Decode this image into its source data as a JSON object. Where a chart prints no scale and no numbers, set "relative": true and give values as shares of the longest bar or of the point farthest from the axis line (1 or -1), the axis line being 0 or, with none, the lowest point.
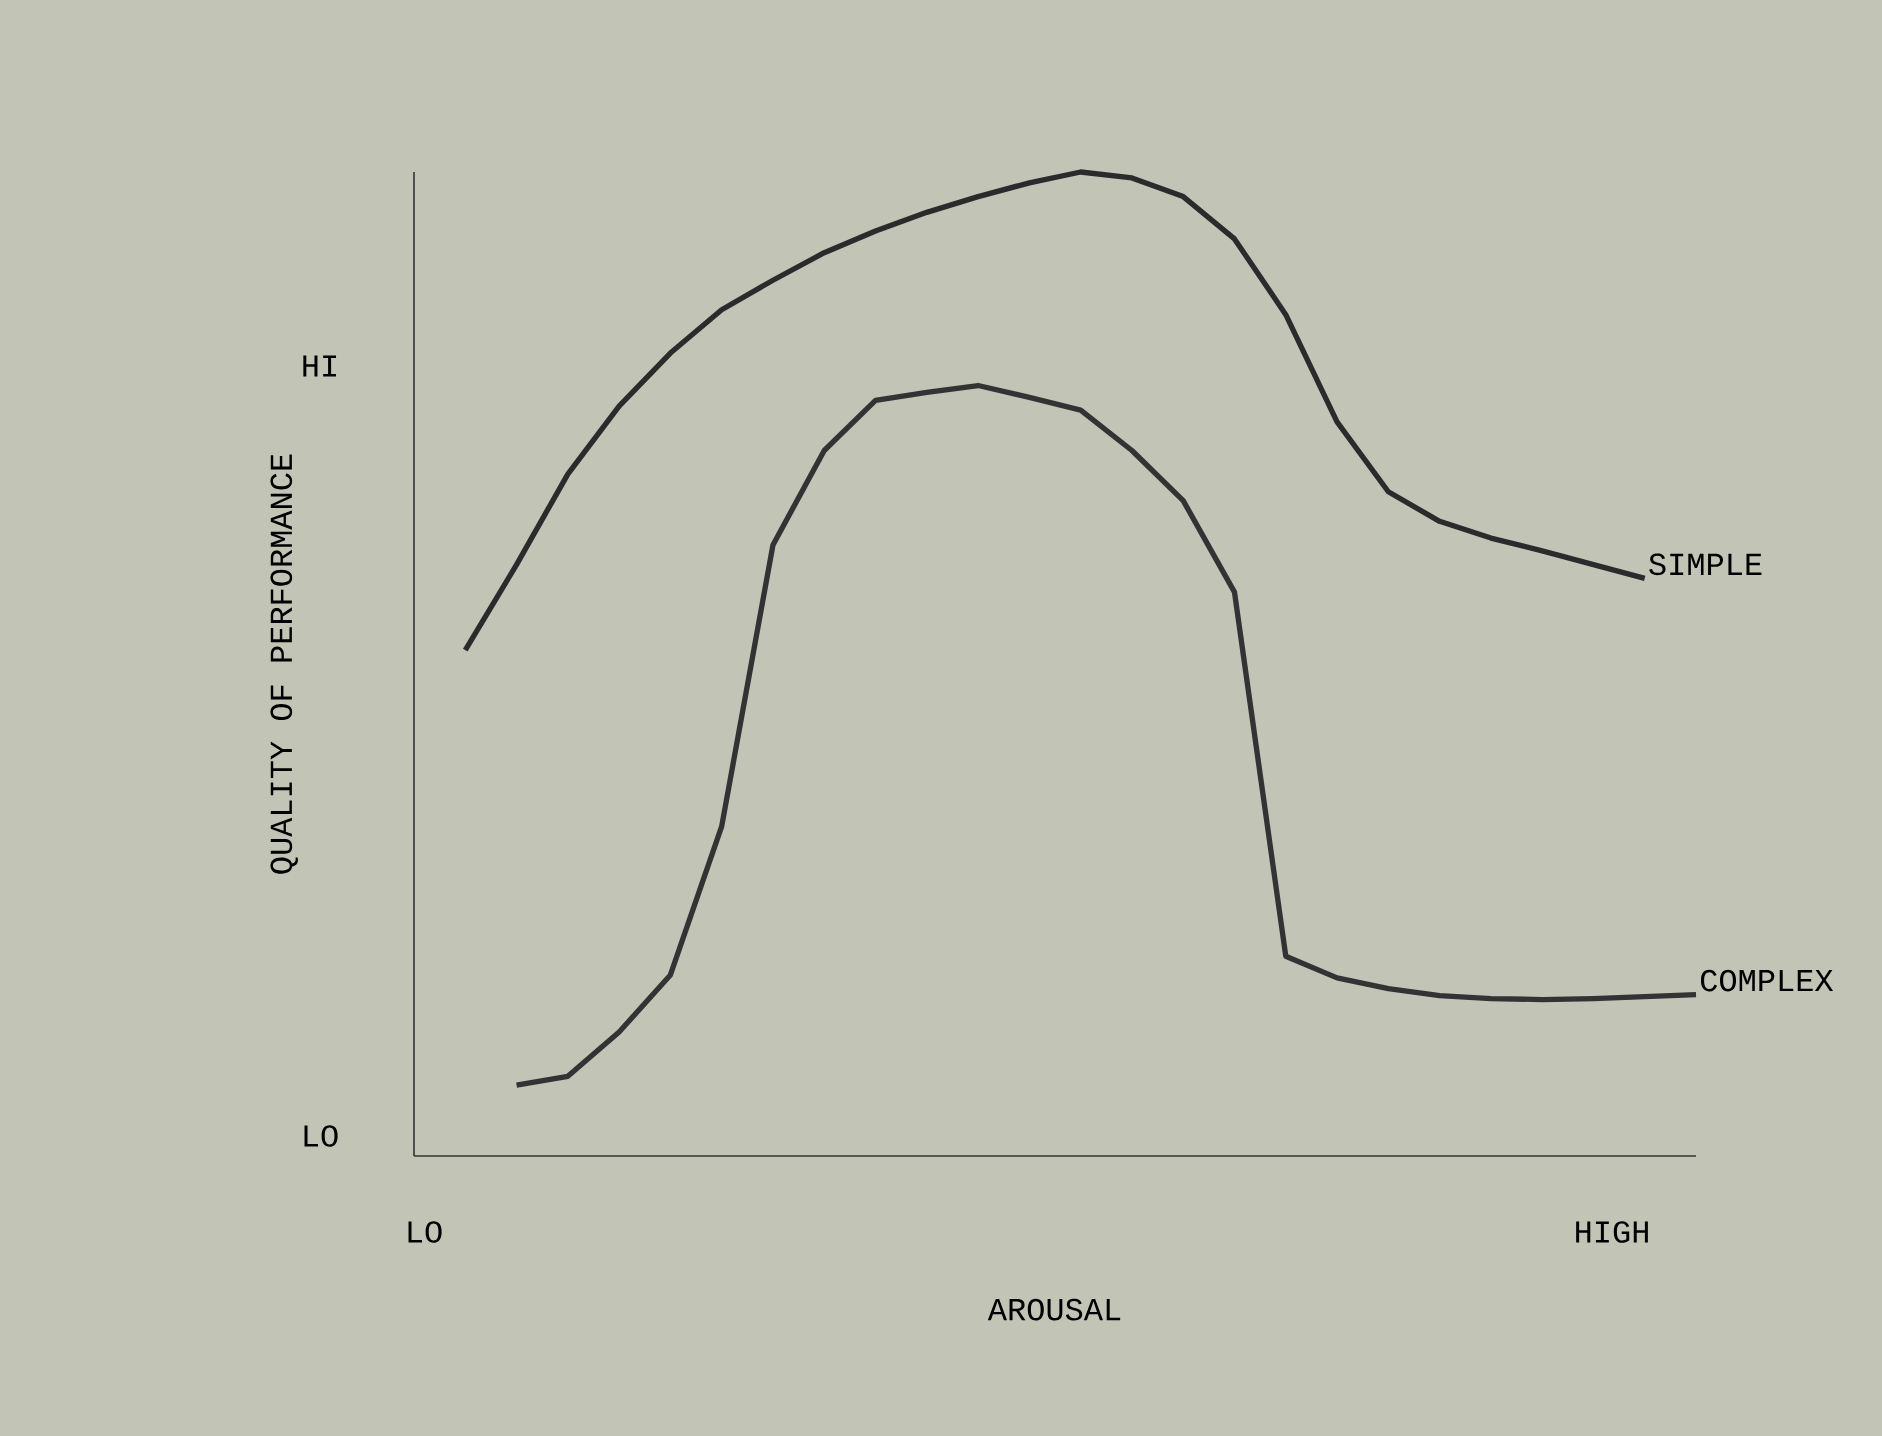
{
  "chart_data": {
    "type": "line",
    "relative": true,
    "xlabel": "AROUSAL",
    "ylabel": "QUALITY OF PERFORMANCE",
    "annotations": [
      "HI",
      "LO",
      "LO",
      "HIGH"
    ],
    "legend": false,
    "marker": "none",
    "line_style": "solid",
    "categories": [
      null,
      null,
      null,
      null,
      null,
      null,
      null,
      null,
      null,
      null,
      null,
      null,
      null,
      null,
      null,
      null,
      null,
      null,
      null,
      null,
      null,
      null,
      null,
      null,
      null
    ],
    "series": [
      {
        "name": "SIMPLE",
        "color": "#2b2b2b",
        "values": [
          0.514,
          0.601,
          0.693,
          0.762,
          0.816,
          0.86,
          0.89,
          0.918,
          0.94,
          0.959,
          0.975,
          0.989,
          1.0,
          0.994,
          0.975,
          0.932,
          0.855,
          0.746,
          0.675,
          0.645,
          0.628,
          0.615,
          0.601,
          0.587,
          null
        ]
      },
      {
        "name": "COMPLEX",
        "color": "#333333",
        "values": [
          null,
          0.072,
          0.081,
          0.126,
          0.184,
          0.335,
          0.621,
          0.717,
          0.768,
          0.776,
          0.783,
          0.771,
          0.758,
          0.717,
          0.666,
          0.573,
          0.203,
          0.181,
          0.17,
          0.163,
          0.16,
          0.159,
          0.16,
          0.162,
          0.164
        ]
      }
    ]
  }
}
